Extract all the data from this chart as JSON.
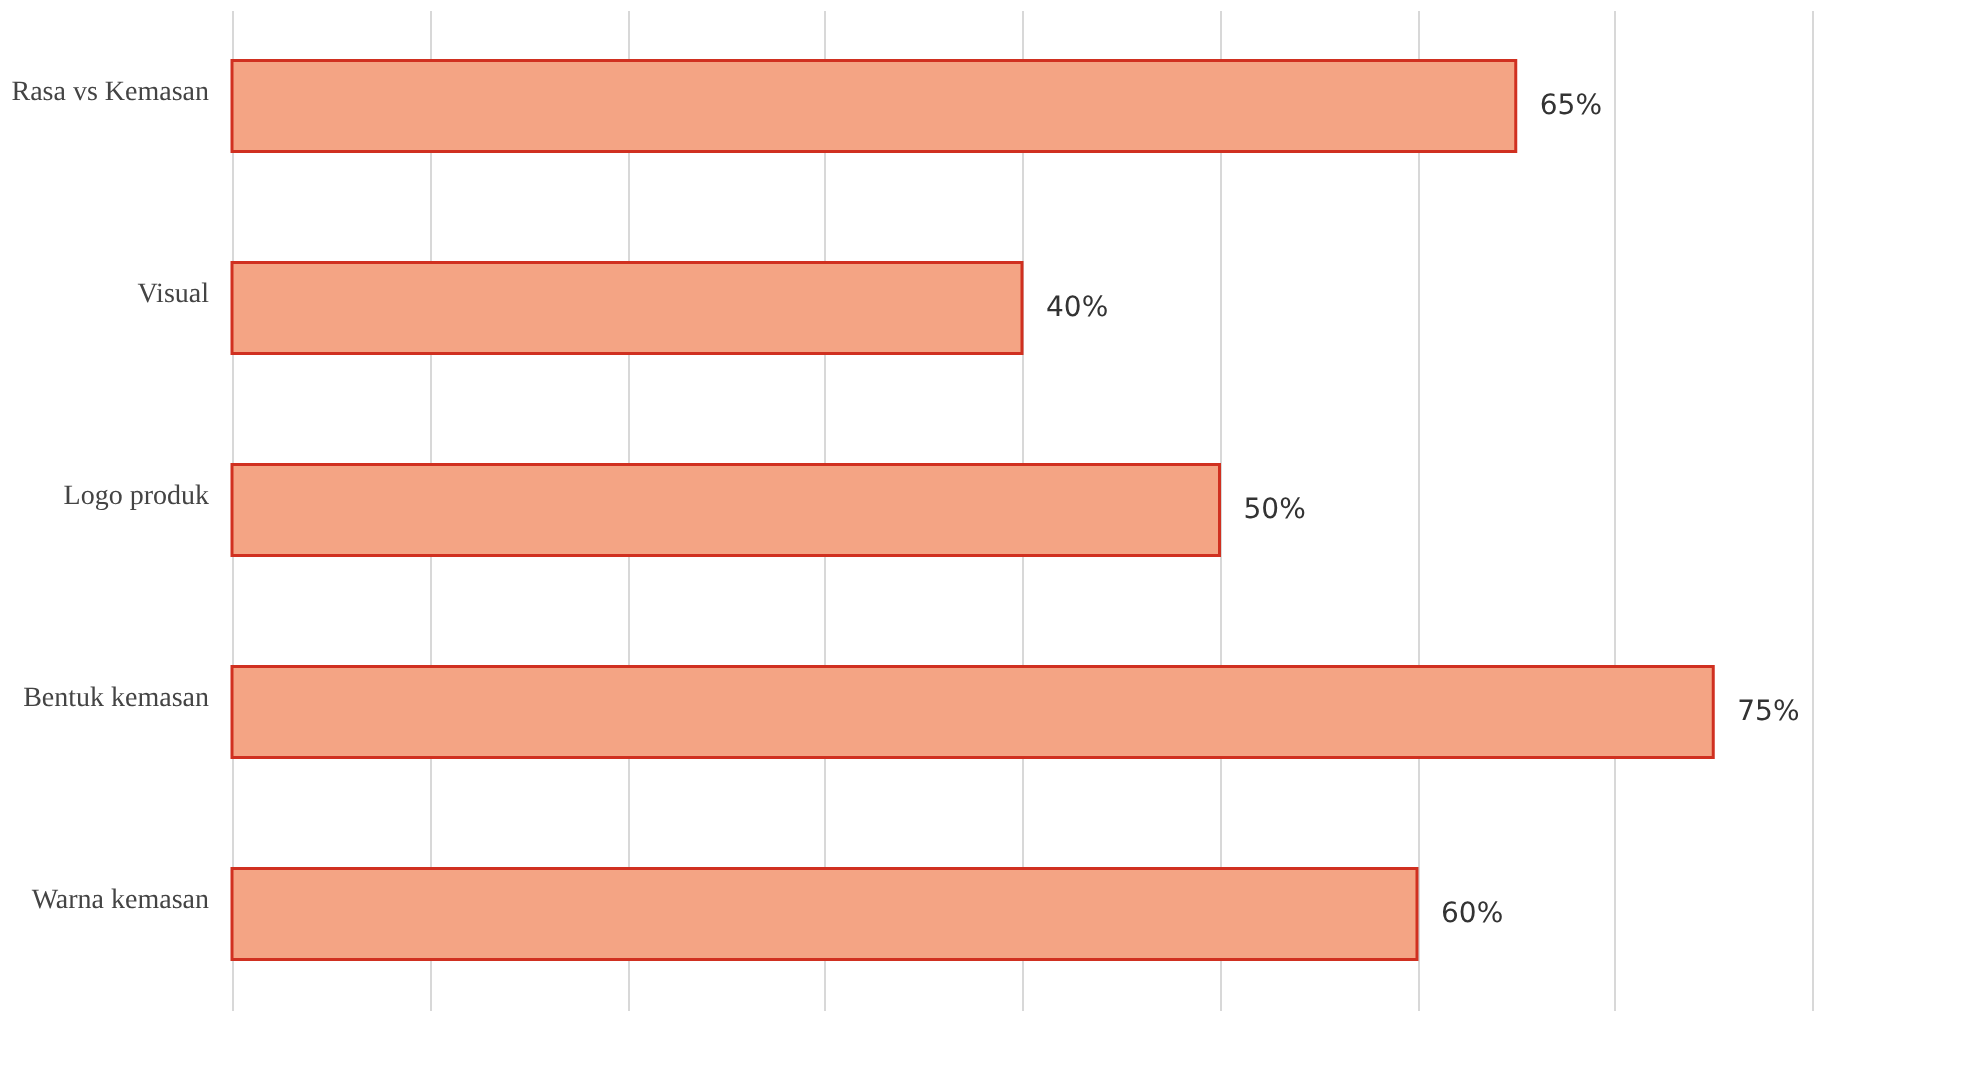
{
  "chart_data": {
    "type": "bar",
    "orientation": "horizontal",
    "categories": [
      "Rasa vs Kemasan",
      "Visual",
      "Logo produk",
      "Bentuk kemasan",
      "Warna kemasan"
    ],
    "values": [
      65,
      40,
      50,
      75,
      60
    ],
    "value_labels": [
      "65%",
      "40%",
      "50%",
      "75%",
      "60%"
    ],
    "color": "#f4a484",
    "xlim": [
      0,
      80
    ],
    "xticks": [
      {
        "value": 0,
        "label": null
      },
      {
        "value": 10,
        "label": null
      },
      {
        "value": 20,
        "label": null
      },
      {
        "value": 30,
        "label": null
      },
      {
        "value": 40,
        "label": null
      },
      {
        "value": 50,
        "label": null
      },
      {
        "value": 60,
        "label": null
      },
      {
        "value": 70,
        "label": null
      },
      {
        "value": 80,
        "label": null
      }
    ],
    "tick_labels": "y",
    "grid": "x"
  }
}
